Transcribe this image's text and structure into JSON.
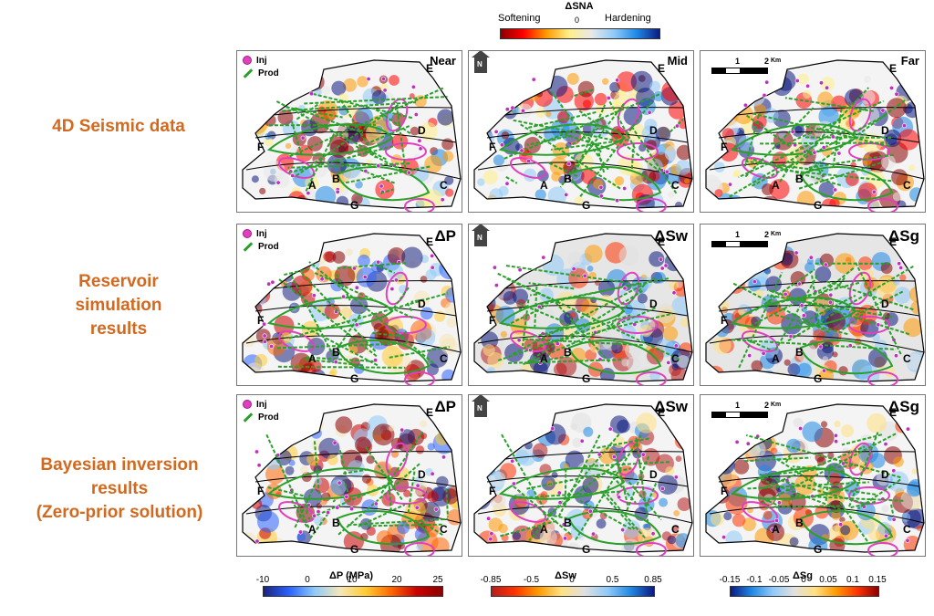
{
  "top_colorbar": {
    "title": "ΔSNA",
    "left": "Softening",
    "center": "0",
    "right": "Hardening"
  },
  "rows": [
    {
      "label_lines": [
        "4D Seismic data"
      ]
    },
    {
      "label_lines": [
        "Reservoir",
        "simulation",
        "results"
      ]
    },
    {
      "label_lines": [
        "Bayesian inversion",
        "results",
        "(Zero-prior solution)"
      ]
    }
  ],
  "legend": {
    "inj": "Inj",
    "prod": "Prod"
  },
  "north": "N",
  "scale": {
    "one": "1",
    "two": "2",
    "unit": "Km"
  },
  "zones": [
    "A",
    "B",
    "C",
    "D",
    "E",
    "F",
    "G"
  ],
  "panel_titles": [
    [
      "Near",
      "Mid",
      "Far"
    ],
    [
      "ΔP",
      "ΔSw",
      "ΔSg"
    ],
    [
      "ΔP",
      "ΔSw",
      "ΔSg"
    ]
  ],
  "bottom_colorbars": [
    {
      "title": "ΔP (MPa)",
      "ticks": [
        "-10",
        "0",
        "10",
        "20",
        "25"
      ],
      "colors": [
        "#1a237e",
        "#2962ff",
        "#90caf9",
        "#f5e6b8",
        "#ffcc33",
        "#ff6600",
        "#cc0000",
        "#8b0000"
      ]
    },
    {
      "title": "ΔSw",
      "ticks": [
        "-0.85",
        "-0.5",
        "0",
        "0.5",
        "0.85"
      ],
      "colors": [
        "#b71c1c",
        "#ff3300",
        "#ff9900",
        "#ffe082",
        "#e0e0e0",
        "#90caf9",
        "#1e88e5",
        "#0d1a80"
      ]
    },
    {
      "title": "ΔSg",
      "ticks": [
        "-0.15",
        "-0.1",
        "-0.05",
        "0",
        "0.05",
        "0.1",
        "0.15"
      ],
      "colors": [
        "#0d1a80",
        "#1e88e5",
        "#90caf9",
        "#e0e0e0",
        "#ffe082",
        "#ff9900",
        "#ff3300",
        "#8b0000"
      ]
    }
  ],
  "sna_colors": [
    "#8b0000",
    "#ff0000",
    "#ff9900",
    "#ffee88",
    "#e8e8e8",
    "#90caf9",
    "#1e88e5",
    "#0d1a80"
  ]
}
